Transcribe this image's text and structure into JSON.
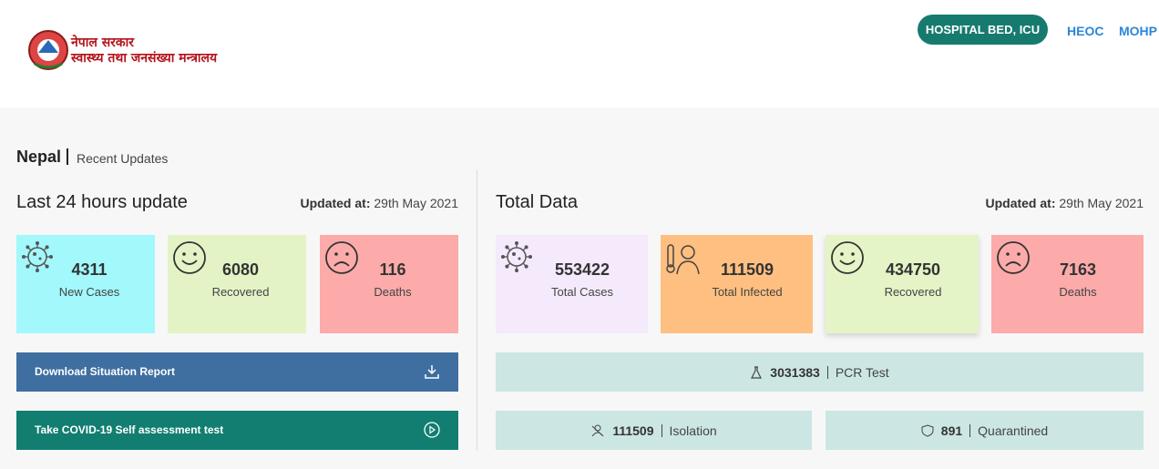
{
  "header": {
    "logo_line1": "नेपाल सरकार",
    "logo_line2": "स्वास्थ्य तथा जनसंख्या मन्त्रालय",
    "nav": [
      "HOSPITAL BED, ICU",
      "HEOC",
      "MOHP"
    ]
  },
  "page_title": {
    "country": "Nepal",
    "subtitle": "Recent Updates"
  },
  "last_24_hours": {
    "title": "Last 24 hours update",
    "updated_label": "Updated at:",
    "updated_date": "29th May 2021",
    "cards": [
      {
        "value": 4311,
        "label": "New Cases"
      },
      {
        "value": 6080,
        "label": "Recovered"
      },
      {
        "value": 116,
        "label": "Deaths"
      }
    ],
    "buttons": [
      "Download Situation Report",
      "Take COVID-19 Self assessment test"
    ]
  },
  "total_data": {
    "title": "Total Data",
    "updated_label": "Updated at:",
    "updated_date": "29th May 2021",
    "cards": [
      {
        "value": 553422,
        "label": "Total Cases"
      },
      {
        "value": 111509,
        "label": "Total Infected"
      },
      {
        "value": 434750,
        "label": "Recovered"
      },
      {
        "value": 7163,
        "label": "Deaths"
      }
    ],
    "tests": [
      {
        "value": 3031383,
        "label": "PCR Test"
      },
      {
        "value": 111509,
        "label": "Isolation"
      },
      {
        "value": 891,
        "label": "Quarantined"
      }
    ]
  }
}
